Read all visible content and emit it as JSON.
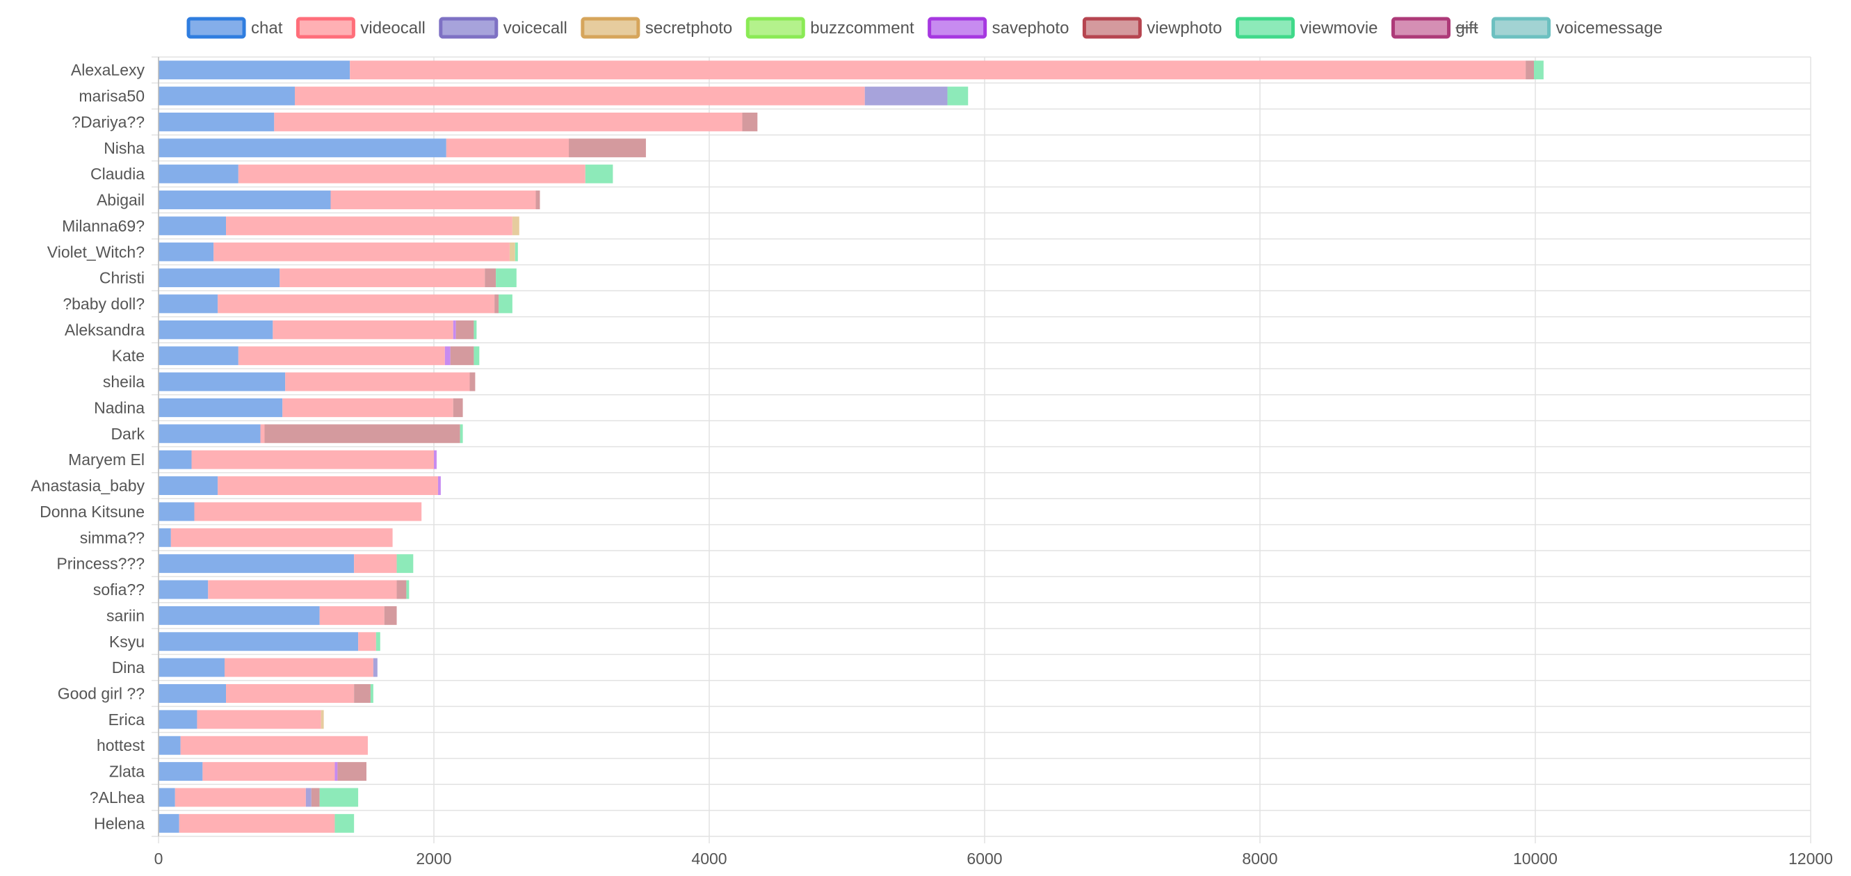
{
  "chart_data": {
    "type": "bar",
    "orientation": "horizontal",
    "stacked": true,
    "title": "",
    "xlabel": "",
    "ylabel": "",
    "xlim": [
      0,
      12000
    ],
    "xticks": [
      0,
      2000,
      4000,
      6000,
      8000,
      10000,
      12000
    ],
    "xtick_labels": [
      "0",
      "2000",
      "4000",
      "6000",
      "8000",
      "10000",
      "12000"
    ],
    "grid": true,
    "legend_position": "top",
    "categories": [
      "AlexaLexy",
      "marisa50",
      "?Dariya??",
      "Nisha",
      "Claudia",
      "Abigail",
      "Milanna69?",
      "Violet_Witch?",
      "Christi",
      "?baby doll?",
      "Aleksandra",
      "Kate",
      "sheila",
      "Nadina",
      "Dark",
      "Maryem El",
      "Anastasia_baby",
      "Donna Kitsune",
      "simma??",
      "Princess???",
      "sofia??",
      "sariin",
      "Ksyu",
      "Dina",
      "Good girl ??",
      "Erica",
      "hottest",
      "Zlata",
      "?ALhea",
      "Helena"
    ],
    "series": [
      {
        "name": "chat",
        "fill": "#84aeea",
        "border": "#2f7ddf",
        "hidden": false,
        "values": [
          1390,
          990,
          840,
          2090,
          580,
          1250,
          490,
          400,
          880,
          430,
          830,
          580,
          920,
          900,
          740,
          240,
          430,
          260,
          90,
          1420,
          360,
          1170,
          1450,
          480,
          490,
          280,
          160,
          320,
          120,
          150
        ]
      },
      {
        "name": "videocall",
        "fill": "#ffb0b4",
        "border": "#ff6e7a",
        "hidden": false,
        "values": [
          8540,
          4140,
          3400,
          890,
          2520,
          1490,
          2080,
          2150,
          1490,
          2010,
          1310,
          1500,
          1340,
          1240,
          30,
          1760,
          1600,
          1650,
          1610,
          310,
          1370,
          470,
          130,
          1080,
          930,
          900,
          1360,
          960,
          950,
          1130
        ]
      },
      {
        "name": "voicecall",
        "fill": "#a7a3db",
        "border": "#7e71c4",
        "hidden": false,
        "values": [
          0,
          600,
          0,
          0,
          0,
          0,
          0,
          0,
          0,
          0,
          0,
          0,
          0,
          0,
          0,
          0,
          0,
          0,
          0,
          0,
          0,
          0,
          0,
          30,
          0,
          0,
          0,
          0,
          40,
          0
        ]
      },
      {
        "name": "secretphoto",
        "fill": "#e6cc9e",
        "border": "#d6a55b",
        "hidden": false,
        "values": [
          0,
          0,
          0,
          0,
          0,
          0,
          50,
          40,
          0,
          0,
          0,
          0,
          0,
          0,
          0,
          0,
          0,
          0,
          0,
          0,
          0,
          0,
          0,
          0,
          0,
          20,
          0,
          0,
          0,
          0
        ]
      },
      {
        "name": "buzzcomment",
        "fill": "#b4f28c",
        "border": "#8aea55",
        "hidden": false,
        "values": [
          0,
          0,
          0,
          0,
          0,
          0,
          0,
          0,
          0,
          0,
          0,
          0,
          0,
          0,
          0,
          0,
          0,
          0,
          0,
          0,
          0,
          0,
          0,
          0,
          0,
          0,
          0,
          0,
          0,
          0
        ]
      },
      {
        "name": "savephoto",
        "fill": "#c78bf0",
        "border": "#a638e0",
        "hidden": false,
        "values": [
          0,
          0,
          0,
          0,
          0,
          0,
          0,
          0,
          0,
          0,
          20,
          40,
          0,
          0,
          0,
          20,
          20,
          0,
          0,
          0,
          0,
          0,
          0,
          0,
          0,
          0,
          0,
          20,
          0,
          0
        ]
      },
      {
        "name": "viewphoto",
        "fill": "#d49a9e",
        "border": "#b64550",
        "hidden": false,
        "values": [
          60,
          0,
          110,
          560,
          0,
          30,
          0,
          0,
          80,
          30,
          130,
          170,
          40,
          70,
          1420,
          0,
          0,
          0,
          0,
          0,
          70,
          90,
          0,
          0,
          120,
          0,
          0,
          210,
          60,
          0
        ]
      },
      {
        "name": "viewmovie",
        "fill": "#8deab9",
        "border": "#40d98a",
        "hidden": false,
        "values": [
          70,
          150,
          0,
          0,
          200,
          0,
          0,
          20,
          150,
          100,
          20,
          40,
          0,
          0,
          20,
          0,
          0,
          0,
          0,
          120,
          20,
          0,
          30,
          0,
          20,
          0,
          0,
          0,
          280,
          140
        ]
      },
      {
        "name": "gift",
        "fill": "#d58fb4",
        "border": "#ad3a78",
        "hidden": true,
        "values": [
          0,
          0,
          0,
          0,
          0,
          0,
          0,
          0,
          0,
          0,
          0,
          0,
          0,
          0,
          0,
          0,
          0,
          0,
          0,
          0,
          0,
          0,
          0,
          0,
          0,
          0,
          0,
          0,
          0,
          0
        ]
      },
      {
        "name": "voicemessage",
        "fill": "#a2d3d3",
        "border": "#6cc0c0",
        "hidden": false,
        "values": [
          0,
          0,
          0,
          0,
          0,
          0,
          0,
          0,
          0,
          0,
          0,
          0,
          0,
          0,
          0,
          0,
          0,
          0,
          0,
          0,
          0,
          0,
          0,
          0,
          0,
          0,
          0,
          0,
          0,
          0
        ]
      }
    ]
  }
}
